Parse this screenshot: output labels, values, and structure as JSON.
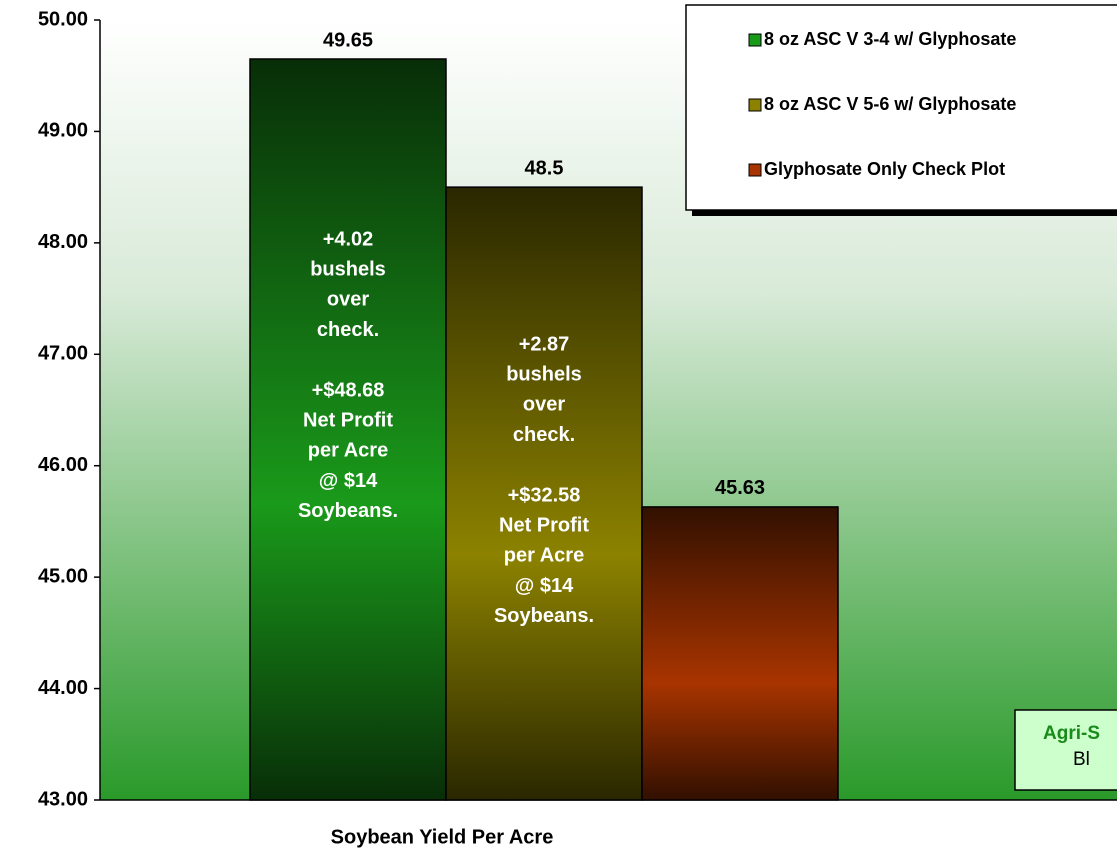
{
  "chart_data": {
    "type": "bar",
    "x_label": "Soybean Yield Per Acre",
    "series": [
      {
        "name": "8 oz ASC V 3-4 w/ Glyphosate",
        "color": "#1a9a1a",
        "values": [
          49.65
        ]
      },
      {
        "name": "8 oz ASC V 5-6 w/ Glyphosate",
        "color": "#8c8200",
        "values": [
          48.5
        ]
      },
      {
        "name": "Glyphosate Only Check Plot",
        "color": "#a83400",
        "values": [
          45.63
        ]
      }
    ],
    "annotations": [
      [
        [
          "+4.02",
          "bushels",
          "over",
          "check."
        ],
        [
          "+$48.68",
          "Net Profit",
          "per Acre",
          "@ $14",
          "Soybeans."
        ]
      ],
      [
        [
          "+2.87",
          "bushels",
          "over",
          "check."
        ],
        [
          "+$32.58",
          "Net Profit",
          "per Acre",
          "@ $14",
          "Soybeans."
        ]
      ]
    ],
    "ylim": [
      43,
      50
    ],
    "yticks": [
      {
        "value": 43,
        "label": "43.00"
      },
      {
        "value": 44,
        "label": "44.00"
      },
      {
        "value": 45,
        "label": "45.00"
      },
      {
        "value": 46,
        "label": "46.00"
      },
      {
        "value": 47,
        "label": "47.00"
      },
      {
        "value": 48,
        "label": "48.00"
      },
      {
        "value": 49,
        "label": "49.00"
      },
      {
        "value": 50,
        "label": "50.00"
      }
    ],
    "note_box": [
      "Agri-S",
      "Bl"
    ]
  }
}
